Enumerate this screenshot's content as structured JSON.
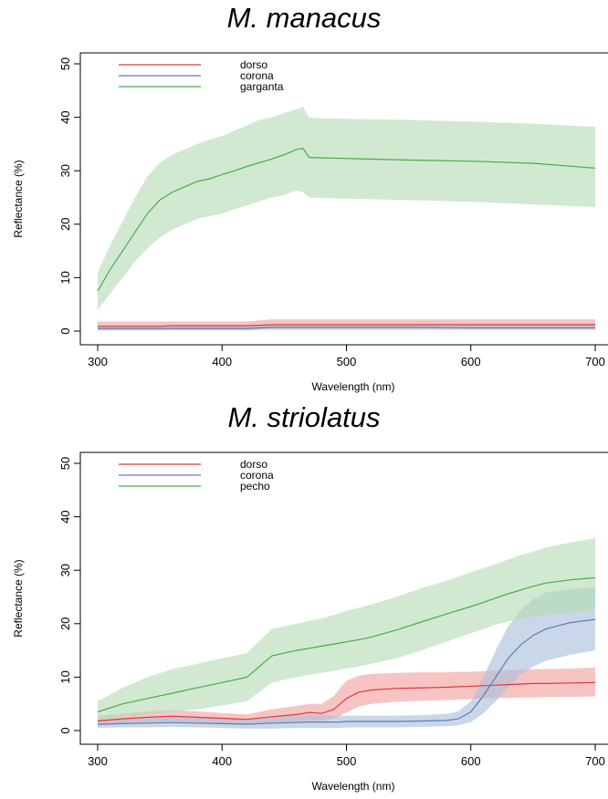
{
  "chart_data": [
    {
      "type": "line",
      "title": "M. manacus",
      "xlabel": "Wavelength (nm)",
      "ylabel": "Reflectance (%)",
      "xlim": [
        300,
        700
      ],
      "ylim": [
        0,
        50
      ],
      "xticks": [
        "300",
        "400",
        "500",
        "600",
        "700"
      ],
      "yticks": [
        "0",
        "10",
        "20",
        "30",
        "40",
        "50"
      ],
      "grid": false,
      "legend_position": "top-left",
      "shaded_band": "+/- standard deviation",
      "x": [
        300,
        310,
        320,
        330,
        340,
        350,
        360,
        370,
        380,
        390,
        400,
        410,
        420,
        430,
        440,
        450,
        460,
        465,
        470,
        480,
        500,
        550,
        600,
        650,
        700
      ],
      "series": [
        {
          "name": "dorso",
          "color": "#e03a3a",
          "fill": "#f2a0a0",
          "values": [
            0.9,
            0.9,
            0.9,
            0.9,
            0.9,
            0.9,
            1.0,
            1.0,
            1.0,
            1.0,
            1.0,
            1.0,
            1.0,
            1.1,
            1.2,
            1.2,
            1.2,
            1.2,
            1.2,
            1.2,
            1.2,
            1.2,
            1.2,
            1.2,
            1.2
          ],
          "upper": [
            1.8,
            1.8,
            1.8,
            1.8,
            1.8,
            1.8,
            1.8,
            1.8,
            1.8,
            1.8,
            1.8,
            1.8,
            1.8,
            2.0,
            2.2,
            2.2,
            2.2,
            2.2,
            2.2,
            2.2,
            2.2,
            2.2,
            2.2,
            2.2,
            2.2
          ],
          "lower": [
            0.2,
            0.2,
            0.2,
            0.2,
            0.2,
            0.2,
            0.3,
            0.3,
            0.3,
            0.3,
            0.3,
            0.3,
            0.3,
            0.4,
            0.5,
            0.5,
            0.5,
            0.5,
            0.5,
            0.5,
            0.5,
            0.5,
            0.5,
            0.5,
            0.5
          ]
        },
        {
          "name": "corona",
          "color": "#5b7fb0",
          "fill": "#a9bedb",
          "values": [
            0.5,
            0.5,
            0.5,
            0.5,
            0.5,
            0.5,
            0.5,
            0.5,
            0.5,
            0.5,
            0.5,
            0.5,
            0.5,
            0.6,
            0.7,
            0.7,
            0.7,
            0.7,
            0.7,
            0.7,
            0.7,
            0.7,
            0.6,
            0.6,
            0.6
          ],
          "upper": [
            1.0,
            1.0,
            1.0,
            1.0,
            1.0,
            1.0,
            1.0,
            1.0,
            1.0,
            1.0,
            1.0,
            1.0,
            1.0,
            1.1,
            1.2,
            1.2,
            1.2,
            1.2,
            1.2,
            1.2,
            1.2,
            1.2,
            1.1,
            1.1,
            1.1
          ],
          "lower": [
            0.1,
            0.1,
            0.1,
            0.1,
            0.1,
            0.1,
            0.1,
            0.1,
            0.1,
            0.1,
            0.1,
            0.1,
            0.1,
            0.2,
            0.2,
            0.2,
            0.2,
            0.2,
            0.2,
            0.2,
            0.2,
            0.2,
            0.2,
            0.2,
            0.2
          ]
        },
        {
          "name": "garganta",
          "color": "#4caa4c",
          "fill": "#b3dbb3",
          "values": [
            7.5,
            11.5,
            15.0,
            18.5,
            22.0,
            24.5,
            26.0,
            27.0,
            28.0,
            28.5,
            29.3,
            30.0,
            30.8,
            31.5,
            32.2,
            33.0,
            34.0,
            34.2,
            32.5,
            32.4,
            32.3,
            32.0,
            31.8,
            31.4,
            30.5
          ],
          "upper": [
            11.0,
            16.0,
            20.5,
            25.0,
            29.0,
            31.5,
            33.0,
            34.0,
            35.0,
            35.8,
            36.5,
            37.5,
            38.5,
            39.5,
            40.0,
            40.8,
            41.5,
            42.0,
            40.0,
            39.8,
            39.7,
            39.5,
            39.2,
            38.8,
            38.2
          ],
          "lower": [
            4.0,
            7.0,
            10.0,
            13.0,
            15.5,
            17.5,
            19.0,
            20.0,
            21.0,
            21.5,
            22.0,
            22.8,
            23.5,
            24.3,
            25.0,
            25.5,
            26.3,
            26.0,
            25.0,
            24.9,
            24.8,
            24.5,
            24.2,
            23.7,
            23.2
          ]
        }
      ]
    },
    {
      "type": "line",
      "title": "M. striolatus",
      "xlabel": "Wavelength (nm)",
      "ylabel": "Reflectance (%)",
      "xlim": [
        300,
        700
      ],
      "ylim": [
        0,
        50
      ],
      "xticks": [
        "300",
        "400",
        "500",
        "600",
        "700"
      ],
      "yticks": [
        "0",
        "10",
        "20",
        "30",
        "40",
        "50"
      ],
      "grid": false,
      "legend_position": "top-left",
      "shaded_band": "+/- standard deviation",
      "x": [
        300,
        320,
        340,
        360,
        380,
        400,
        420,
        440,
        460,
        470,
        480,
        490,
        495,
        500,
        510,
        520,
        540,
        560,
        580,
        590,
        600,
        610,
        620,
        630,
        640,
        650,
        660,
        680,
        700
      ],
      "series": [
        {
          "name": "dorso",
          "color": "#e03a3a",
          "fill": "#f2a0a0",
          "values": [
            1.8,
            2.2,
            2.5,
            2.7,
            2.5,
            2.3,
            2.1,
            2.6,
            3.0,
            3.4,
            3.2,
            4.0,
            5.0,
            6.0,
            7.2,
            7.6,
            7.9,
            8.0,
            8.1,
            8.2,
            8.3,
            8.4,
            8.5,
            8.6,
            8.7,
            8.8,
            8.8,
            8.9,
            9.0
          ],
          "upper": [
            2.8,
            3.2,
            3.6,
            3.8,
            3.6,
            3.3,
            3.0,
            4.0,
            4.6,
            5.0,
            5.0,
            6.5,
            8.0,
            9.3,
            10.3,
            10.6,
            10.8,
            10.9,
            10.9,
            11.0,
            11.0,
            11.1,
            11.2,
            11.3,
            11.4,
            11.5,
            11.5,
            11.6,
            11.8
          ],
          "lower": [
            0.9,
            1.3,
            1.5,
            1.7,
            1.5,
            1.3,
            1.2,
            1.3,
            1.5,
            1.8,
            1.8,
            2.3,
            2.8,
            3.4,
            4.5,
            5.0,
            5.4,
            5.6,
            5.7,
            5.8,
            5.9,
            6.0,
            6.1,
            6.1,
            6.2,
            6.2,
            6.3,
            6.3,
            6.4
          ]
        },
        {
          "name": "corona",
          "color": "#5b7fb0",
          "fill": "#a9bedb",
          "values": [
            1.2,
            1.3,
            1.4,
            1.5,
            1.4,
            1.3,
            1.2,
            1.4,
            1.5,
            1.6,
            1.6,
            1.6,
            1.6,
            1.7,
            1.7,
            1.7,
            1.7,
            1.8,
            1.9,
            2.2,
            3.5,
            6.5,
            10.0,
            13.5,
            16.0,
            17.8,
            19.0,
            20.2,
            20.8
          ],
          "upper": [
            2.0,
            2.3,
            2.5,
            2.6,
            2.5,
            2.3,
            2.2,
            2.6,
            2.8,
            3.0,
            2.9,
            2.8,
            2.8,
            2.8,
            2.8,
            2.8,
            2.8,
            2.9,
            3.1,
            3.6,
            5.5,
            10.0,
            15.0,
            19.5,
            22.5,
            24.5,
            25.8,
            26.5,
            26.8
          ],
          "lower": [
            0.5,
            0.6,
            0.6,
            0.7,
            0.6,
            0.5,
            0.4,
            0.4,
            0.5,
            0.5,
            0.5,
            0.5,
            0.5,
            0.6,
            0.6,
            0.6,
            0.6,
            0.7,
            0.8,
            1.0,
            1.6,
            3.2,
            5.5,
            8.0,
            10.5,
            12.0,
            13.0,
            14.2,
            15.0
          ]
        },
        {
          "name": "pecho",
          "color": "#4caa4c",
          "fill": "#b3dbb3",
          "values": [
            3.5,
            5.0,
            6.0,
            7.0,
            8.0,
            9.0,
            10.0,
            14.0,
            15.0,
            15.4,
            15.8,
            16.2,
            16.4,
            16.6,
            17.0,
            17.5,
            18.8,
            20.3,
            21.8,
            22.5,
            23.2,
            24.0,
            24.8,
            25.6,
            26.3,
            27.0,
            27.6,
            28.2,
            28.6
          ],
          "upper": [
            5.5,
            8.0,
            10.0,
            11.5,
            12.5,
            13.5,
            14.5,
            19.0,
            20.0,
            20.5,
            21.0,
            21.6,
            22.0,
            22.4,
            23.0,
            23.6,
            25.0,
            26.6,
            28.0,
            28.8,
            29.6,
            30.4,
            31.2,
            32.0,
            32.8,
            33.5,
            34.2,
            35.2,
            36.0
          ],
          "lower": [
            1.5,
            2.5,
            3.0,
            3.5,
            4.0,
            4.7,
            5.5,
            9.0,
            10.0,
            10.4,
            10.8,
            11.2,
            11.4,
            11.6,
            12.0,
            12.5,
            13.5,
            15.0,
            16.6,
            17.4,
            18.2,
            19.0,
            19.8,
            20.4,
            20.9,
            21.3,
            21.6,
            22.0,
            22.5
          ]
        }
      ]
    }
  ]
}
